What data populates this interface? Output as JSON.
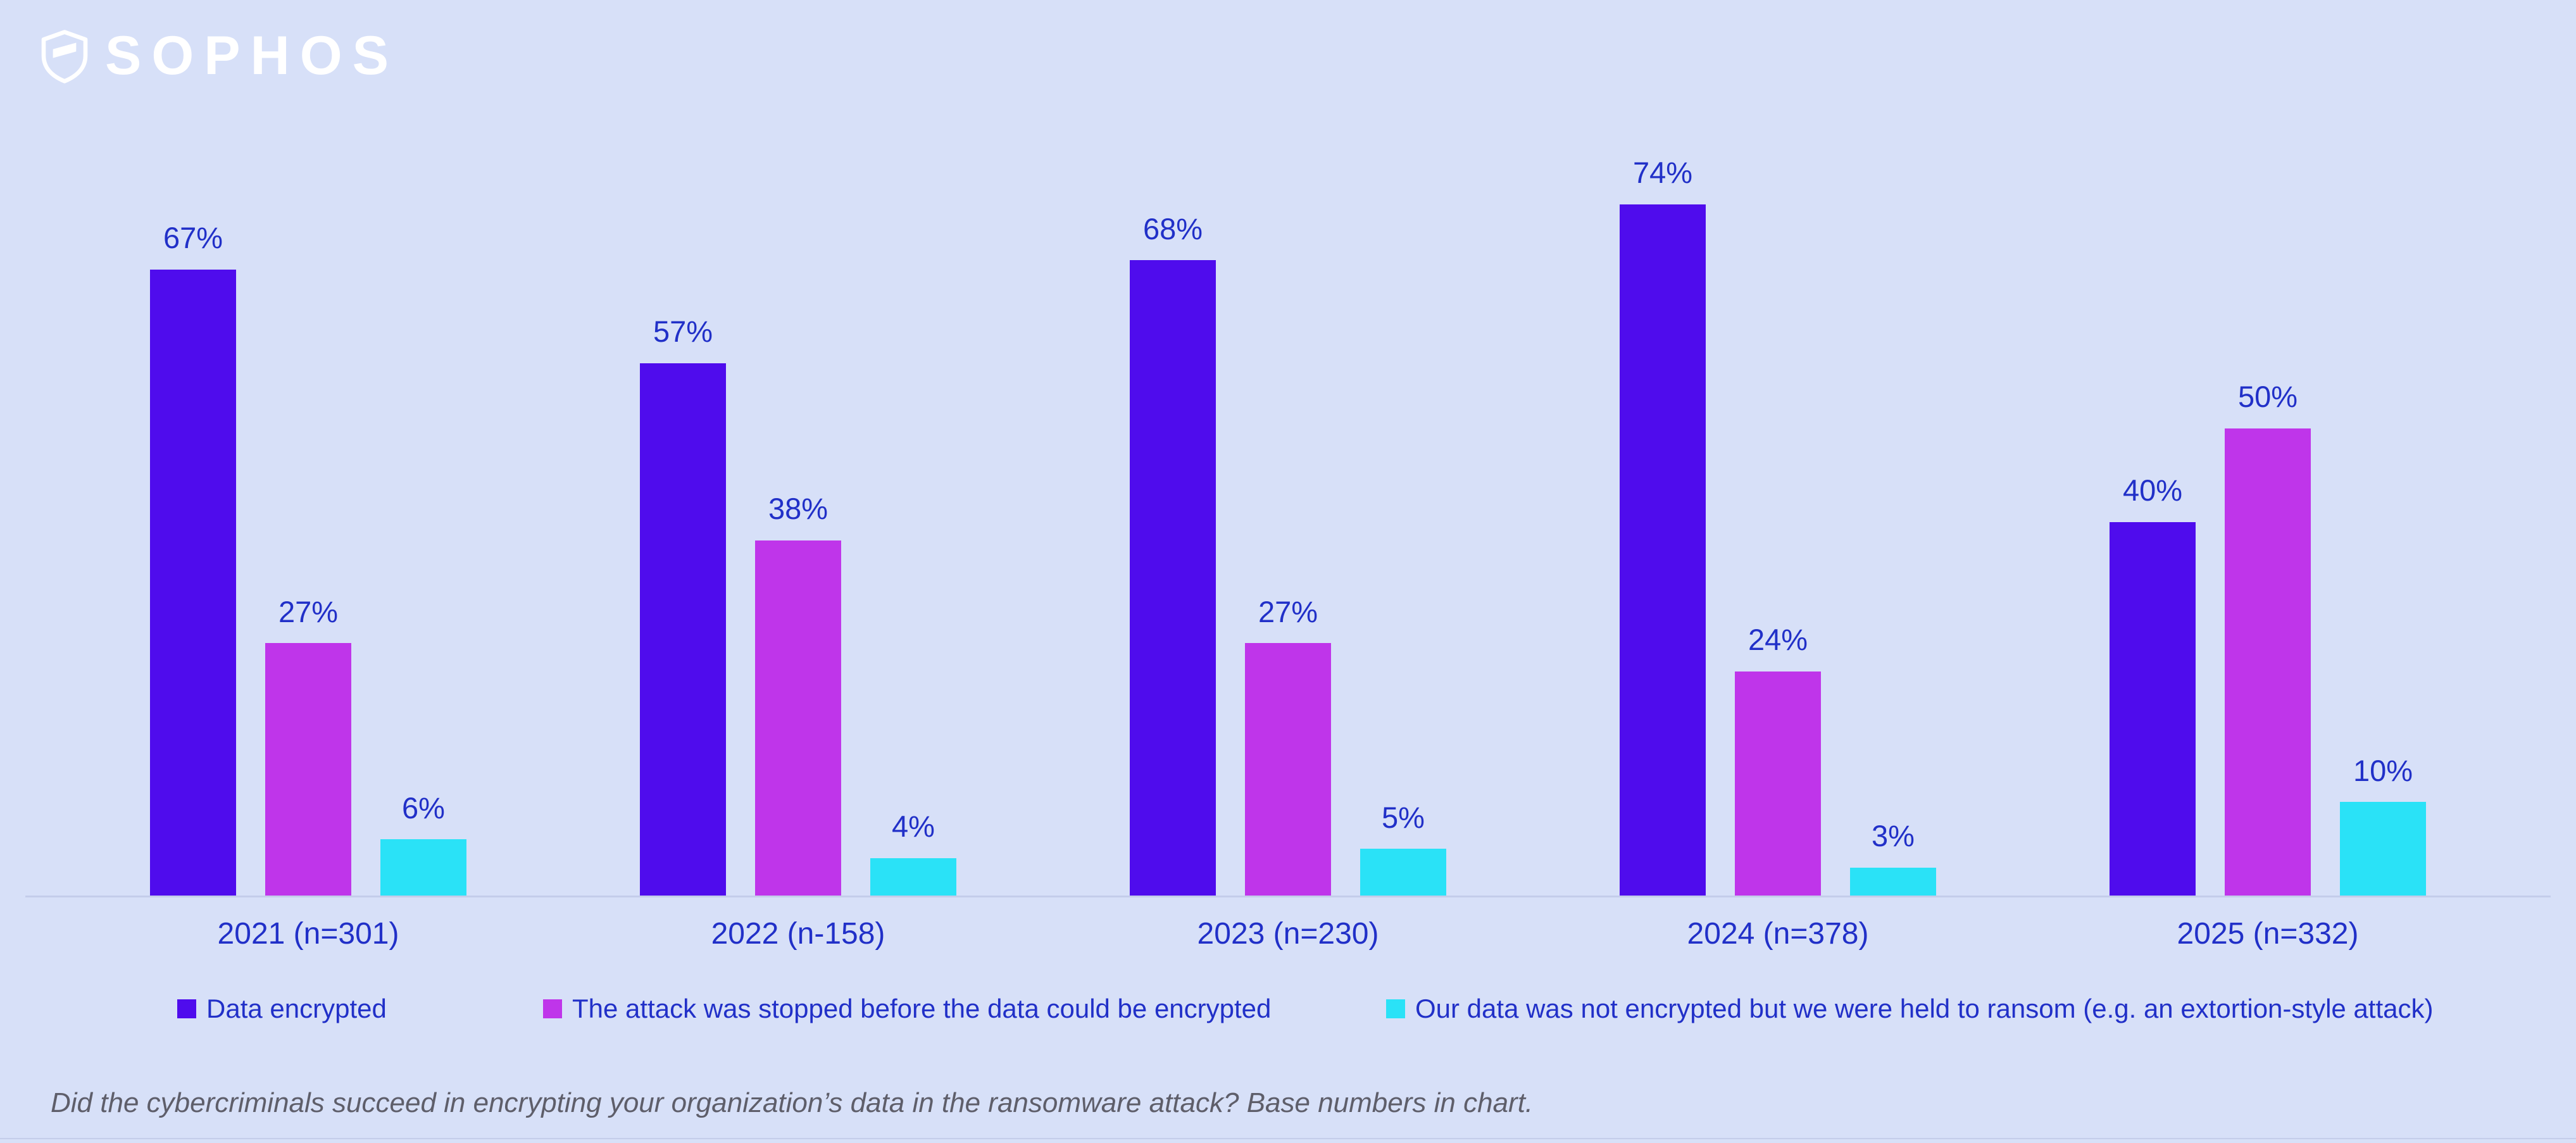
{
  "brand": {
    "logo_text": "SOPHOS"
  },
  "chart_data": {
    "type": "bar",
    "title": "",
    "categories": [
      "2021 (n=301)",
      "2022 (n-158)",
      "2023 (n=230)",
      "2024 (n=378)",
      "2025 (n=332)"
    ],
    "series": [
      {
        "name": "Data encrypted",
        "color": "#4f0ced",
        "values": [
          67,
          57,
          68,
          74,
          40
        ]
      },
      {
        "name": "The attack was stopped before the data could be encrypted",
        "color": "#bf35ea",
        "values": [
          27,
          38,
          27,
          24,
          50
        ]
      },
      {
        "name": "Our data was not encrypted but we were held to ransom (e.g. an extortion-style attack)",
        "color": "#2ae2f7",
        "values": [
          6,
          4,
          5,
          3,
          10
        ]
      }
    ],
    "value_suffix": "%",
    "ylim": [
      0,
      80
    ],
    "grid": false,
    "legend_position": "bottom"
  },
  "footer": {
    "note": "Did the cybercriminals succeed in encrypting your organization’s data in the ransomware attack?  Base numbers in chart."
  },
  "colors": {
    "background": "#d7e0f8",
    "text": "#2130c8",
    "axis_line": "#c4cdea",
    "footer_text": "#5e5e6a",
    "logo": "#ffffff"
  }
}
